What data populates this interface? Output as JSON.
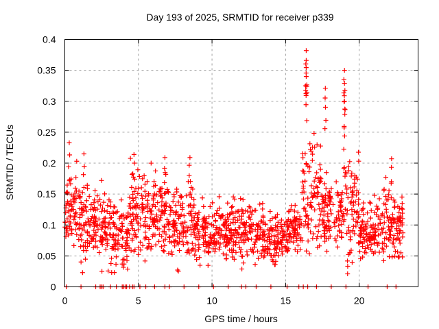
{
  "chart_data": {
    "type": "scatter",
    "title": "Day 193 of 2025, SRMTID for receiver p339",
    "xlabel": "GPS time / hours",
    "ylabel": "SRMTID / TECUs",
    "xlim": [
      0,
      24
    ],
    "ylim": [
      0,
      0.4
    ],
    "xticks": [
      0,
      5,
      10,
      15,
      20
    ],
    "xtick_labels": [
      "0",
      "5",
      "10",
      "15",
      "20"
    ],
    "yticks": [
      0,
      0.05,
      0.1,
      0.15,
      0.2,
      0.25,
      0.3,
      0.35,
      0.4
    ],
    "ytick_labels": [
      "0",
      "0.05",
      "0.1",
      "0.15",
      "0.2",
      "0.25",
      "0.3",
      "0.35",
      "0.4"
    ],
    "grid": true,
    "legend": "none",
    "marker": "plus",
    "series_color": "#ff0000",
    "zero_value_hours": [
      0.1,
      1.1,
      2.1,
      2.4,
      2.5,
      2.6,
      3.1,
      3.5,
      3.9,
      4.0,
      4.1,
      4.2,
      4.4,
      4.6,
      4.7,
      5.1,
      5.5,
      6.1,
      6.8,
      7.1,
      8.1,
      9.1,
      10.1,
      11.1,
      12.0,
      12.3,
      13.0,
      14.0,
      15.1,
      15.9,
      16.2,
      16.5,
      17.1,
      18.1,
      19.1,
      20.6,
      21.9,
      22.5
    ],
    "peaks": [
      {
        "hour": 0.3,
        "value": 0.233
      },
      {
        "hour": 1.3,
        "value": 0.215
      },
      {
        "hour": 4.7,
        "value": 0.214
      },
      {
        "hour": 6.8,
        "value": 0.209
      },
      {
        "hour": 8.5,
        "value": 0.209
      },
      {
        "hour": 16.4,
        "value": 0.382
      },
      {
        "hour": 16.4,
        "value": 0.366
      },
      {
        "hour": 16.4,
        "value": 0.34
      },
      {
        "hour": 17.7,
        "value": 0.321
      },
      {
        "hour": 19.0,
        "value": 0.35
      },
      {
        "hour": 19.0,
        "value": 0.329
      },
      {
        "hour": 19.0,
        "value": 0.3
      },
      {
        "hour": 22.2,
        "value": 0.207
      }
    ],
    "segments": [
      {
        "start": 0.0,
        "end": 1.0,
        "base": 0.12,
        "spread": 0.05
      },
      {
        "start": 1.0,
        "end": 2.5,
        "base": 0.1,
        "spread": 0.045
      },
      {
        "start": 2.5,
        "end": 4.3,
        "base": 0.09,
        "spread": 0.045
      },
      {
        "start": 4.3,
        "end": 7.0,
        "base": 0.12,
        "spread": 0.05
      },
      {
        "start": 7.0,
        "end": 9.0,
        "base": 0.105,
        "spread": 0.05
      },
      {
        "start": 9.0,
        "end": 11.0,
        "base": 0.085,
        "spread": 0.035
      },
      {
        "start": 11.0,
        "end": 13.5,
        "base": 0.09,
        "spread": 0.035
      },
      {
        "start": 13.5,
        "end": 15.2,
        "base": 0.075,
        "spread": 0.03
      },
      {
        "start": 15.2,
        "end": 16.1,
        "base": 0.095,
        "spread": 0.025
      },
      {
        "start": 16.1,
        "end": 17.4,
        "base": 0.15,
        "spread": 0.07
      },
      {
        "start": 17.4,
        "end": 18.8,
        "base": 0.12,
        "spread": 0.05
      },
      {
        "start": 18.8,
        "end": 20.0,
        "base": 0.13,
        "spread": 0.06
      },
      {
        "start": 20.0,
        "end": 21.0,
        "base": 0.09,
        "spread": 0.03
      },
      {
        "start": 21.0,
        "end": 23.0,
        "base": 0.1,
        "spread": 0.045
      }
    ]
  }
}
